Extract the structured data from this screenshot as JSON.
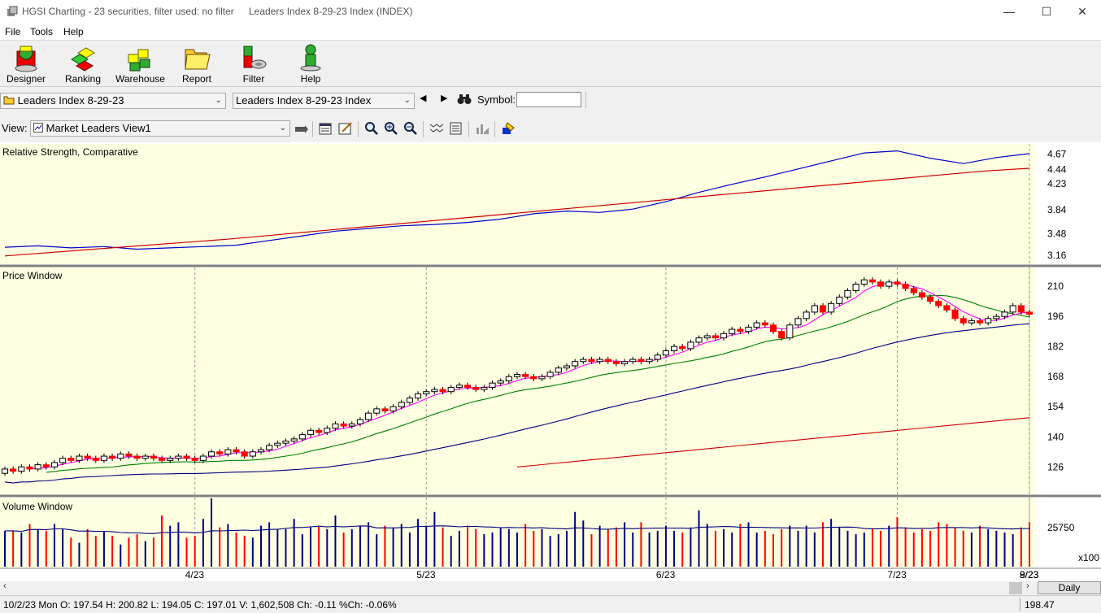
{
  "window": {
    "title": "HGSI Charting - 23 securities, filter used: no filter",
    "document": "Leaders Index 8-29-23 Index (INDEX)",
    "minimize": "—",
    "maximize": "☐",
    "close": "✕"
  },
  "menu": [
    "File",
    "Tools",
    "Help"
  ],
  "toolbar": [
    "Designer",
    "Ranking",
    "Warehouse",
    "Report",
    "Filter",
    "Help"
  ],
  "selectors": {
    "list_value": "Leaders Index 8-29-23",
    "security_value": "Leaders Index 8-29-23 Index",
    "symbol_label": "Symbol:",
    "symbol_value": "",
    "prev": "◀",
    "next": "▶"
  },
  "view": {
    "label": "View:",
    "value": "Market Leaders View1"
  },
  "panels": {
    "rs": {
      "title": "Relative Strength, Comparative",
      "ticks": [
        "4.67",
        "4.44",
        "4.23",
        "3.84",
        "3.48",
        "3.16"
      ]
    },
    "price": {
      "title": "Price Window",
      "ticks": [
        "210",
        "196",
        "182",
        "168",
        "154",
        "140",
        "126"
      ]
    },
    "volume": {
      "title": "Volume Window",
      "ticks": [
        "25750"
      ],
      "multiplier": "x100"
    }
  },
  "x_labels": [
    "4/23",
    "5/23",
    "6/23",
    "7/23",
    "8/23",
    "9/23"
  ],
  "period": "Daily",
  "status": {
    "text": "10/2/23 Mon O: 197.54 H: 200.82 L: 194.05 C: 197.01 V: 1,602,508 Ch: -0.11 %Ch: -0.06%",
    "last": "198.47"
  },
  "colors": {
    "chart_bg": "#ffffe1",
    "up_candle": "#ffffff",
    "down_candle": "#ff0000",
    "rs_line": "#0000cc",
    "rs_ma": "#cc0000",
    "ma_short": "#ff00ff",
    "ma_mid": "#008000",
    "ma_long": "#000080",
    "ma_longest": "#cc0000",
    "vol_up": "#000080",
    "vol_down": "#ff0000"
  },
  "chart_data": {
    "type": "candlestick",
    "series": [
      {
        "name": "Relative Strength, Comparative",
        "values": [
          3.28,
          3.3,
          3.27,
          3.29,
          3.25,
          3.27,
          3.29,
          3.31,
          3.38,
          3.45,
          3.52,
          3.56,
          3.6,
          3.62,
          3.65,
          3.7,
          3.78,
          3.82,
          3.8,
          3.85,
          3.96,
          4.1,
          4.22,
          4.33,
          4.45,
          4.57,
          4.69,
          4.72,
          4.61,
          4.53,
          4.62,
          4.68
        ]
      },
      {
        "name": "RS MA",
        "values": [
          3.15,
          3.2,
          3.25,
          3.3,
          3.35,
          3.4,
          3.46,
          3.52,
          3.58,
          3.64,
          3.7,
          3.76,
          3.82,
          3.88,
          3.94,
          4.0,
          4.06,
          4.12,
          4.18,
          4.24,
          4.3,
          4.36,
          4.42,
          4.46
        ]
      }
    ],
    "candles": [
      {
        "o": 123,
        "c": 125
      },
      {
        "o": 125,
        "c": 124
      },
      {
        "o": 124,
        "c": 126
      },
      {
        "o": 126,
        "c": 125
      },
      {
        "o": 125,
        "c": 127
      },
      {
        "o": 127,
        "c": 126
      },
      {
        "o": 126,
        "c": 128
      },
      {
        "o": 128,
        "c": 130
      },
      {
        "o": 130,
        "c": 129
      },
      {
        "o": 129,
        "c": 131
      },
      {
        "o": 131,
        "c": 130
      },
      {
        "o": 130,
        "c": 129
      },
      {
        "o": 129,
        "c": 131
      },
      {
        "o": 131,
        "c": 130
      },
      {
        "o": 130,
        "c": 132
      },
      {
        "o": 132,
        "c": 131
      },
      {
        "o": 131,
        "c": 130
      },
      {
        "o": 130,
        "c": 131
      },
      {
        "o": 131,
        "c": 130
      },
      {
        "o": 130,
        "c": 129
      },
      {
        "o": 129,
        "c": 130
      },
      {
        "o": 130,
        "c": 131
      },
      {
        "o": 131,
        "c": 130
      },
      {
        "o": 130,
        "c": 129
      },
      {
        "o": 129,
        "c": 131
      },
      {
        "o": 131,
        "c": 133
      },
      {
        "o": 133,
        "c": 132
      },
      {
        "o": 132,
        "c": 134
      },
      {
        "o": 134,
        "c": 133
      },
      {
        "o": 133,
        "c": 131
      },
      {
        "o": 131,
        "c": 133
      },
      {
        "o": 133,
        "c": 134
      },
      {
        "o": 134,
        "c": 136
      },
      {
        "o": 136,
        "c": 137
      },
      {
        "o": 137,
        "c": 138
      },
      {
        "o": 138,
        "c": 139
      },
      {
        "o": 139,
        "c": 141
      },
      {
        "o": 141,
        "c": 143
      },
      {
        "o": 143,
        "c": 142
      },
      {
        "o": 142,
        "c": 144
      },
      {
        "o": 144,
        "c": 146
      },
      {
        "o": 146,
        "c": 145
      },
      {
        "o": 145,
        "c": 146
      },
      {
        "o": 146,
        "c": 148
      },
      {
        "o": 148,
        "c": 151
      },
      {
        "o": 151,
        "c": 153
      },
      {
        "o": 153,
        "c": 152
      },
      {
        "o": 152,
        "c": 154
      },
      {
        "o": 154,
        "c": 156
      },
      {
        "o": 156,
        "c": 158
      },
      {
        "o": 158,
        "c": 160
      },
      {
        "o": 160,
        "c": 161
      },
      {
        "o": 161,
        "c": 162
      },
      {
        "o": 162,
        "c": 161
      },
      {
        "o": 161,
        "c": 163
      },
      {
        "o": 163,
        "c": 164
      },
      {
        "o": 164,
        "c": 163
      },
      {
        "o": 163,
        "c": 162
      },
      {
        "o": 162,
        "c": 163
      },
      {
        "o": 163,
        "c": 165
      },
      {
        "o": 165,
        "c": 166
      },
      {
        "o": 166,
        "c": 168
      },
      {
        "o": 168,
        "c": 169
      },
      {
        "o": 169,
        "c": 168
      },
      {
        "o": 168,
        "c": 167
      },
      {
        "o": 167,
        "c": 168
      },
      {
        "o": 168,
        "c": 170
      },
      {
        "o": 170,
        "c": 172
      },
      {
        "o": 172,
        "c": 173
      },
      {
        "o": 173,
        "c": 175
      },
      {
        "o": 175,
        "c": 176
      },
      {
        "o": 176,
        "c": 175
      },
      {
        "o": 175,
        "c": 176
      },
      {
        "o": 176,
        "c": 175
      },
      {
        "o": 175,
        "c": 174
      },
      {
        "o": 174,
        "c": 175
      },
      {
        "o": 175,
        "c": 176
      },
      {
        "o": 176,
        "c": 175
      },
      {
        "o": 175,
        "c": 176
      },
      {
        "o": 176,
        "c": 178
      },
      {
        "o": 178,
        "c": 180
      },
      {
        "o": 180,
        "c": 182
      },
      {
        "o": 182,
        "c": 181
      },
      {
        "o": 181,
        "c": 184
      },
      {
        "o": 184,
        "c": 186
      },
      {
        "o": 186,
        "c": 187
      },
      {
        "o": 187,
        "c": 186
      },
      {
        "o": 186,
        "c": 188
      },
      {
        "o": 188,
        "c": 190
      },
      {
        "o": 190,
        "c": 189
      },
      {
        "o": 189,
        "c": 191
      },
      {
        "o": 191,
        "c": 193
      },
      {
        "o": 193,
        "c": 192
      },
      {
        "o": 192,
        "c": 189
      },
      {
        "o": 189,
        "c": 186
      },
      {
        "o": 186,
        "c": 192
      },
      {
        "o": 192,
        "c": 195
      },
      {
        "o": 195,
        "c": 198
      },
      {
        "o": 198,
        "c": 201
      },
      {
        "o": 201,
        "c": 198
      },
      {
        "o": 198,
        "c": 202
      },
      {
        "o": 202,
        "c": 205
      },
      {
        "o": 205,
        "c": 208
      },
      {
        "o": 208,
        "c": 211
      },
      {
        "o": 211,
        "c": 213
      },
      {
        "o": 213,
        "c": 212
      },
      {
        "o": 212,
        "c": 210
      },
      {
        "o": 210,
        "c": 212
      },
      {
        "o": 212,
        "c": 211
      },
      {
        "o": 211,
        "c": 209
      },
      {
        "o": 209,
        "c": 207
      },
      {
        "o": 207,
        "c": 205
      },
      {
        "o": 205,
        "c": 203
      },
      {
        "o": 203,
        "c": 201
      },
      {
        "o": 201,
        "c": 199
      },
      {
        "o": 199,
        "c": 195
      },
      {
        "o": 195,
        "c": 193
      },
      {
        "o": 193,
        "c": 194
      },
      {
        "o": 194,
        "c": 193
      },
      {
        "o": 193,
        "c": 195
      },
      {
        "o": 195,
        "c": 196
      },
      {
        "o": 196,
        "c": 198
      },
      {
        "o": 198,
        "c": 201
      },
      {
        "o": 201,
        "c": 198
      },
      {
        "o": 198,
        "c": 197
      }
    ],
    "volume": [
      210,
      210,
      200,
      250,
      220,
      210,
      250,
      220,
      170,
      140,
      220,
      180,
      210,
      180,
      130,
      170,
      190,
      150,
      170,
      300,
      240,
      260,
      170,
      180,
      280,
      400,
      230,
      250,
      200,
      180,
      170,
      240,
      260,
      220,
      220,
      280,
      190,
      230,
      240,
      220,
      300,
      200,
      220,
      240,
      260,
      190,
      240,
      230,
      250,
      200,
      280,
      240,
      320,
      230,
      180,
      210,
      240,
      220,
      190,
      200,
      230,
      220,
      200,
      250,
      210,
      220,
      180,
      190,
      210,
      320,
      270,
      190,
      240,
      220,
      230,
      260,
      200,
      260,
      200,
      210,
      240,
      210,
      200,
      230,
      330,
      250,
      210,
      220,
      200,
      250,
      260,
      200,
      210,
      190,
      220,
      240,
      210,
      240,
      200,
      260,
      280,
      230,
      210,
      190,
      200,
      220,
      210,
      240,
      290,
      230,
      200,
      220,
      210,
      260,
      250,
      230,
      210,
      200,
      240,
      220,
      210,
      200,
      190,
      230,
      220,
      260,
      210,
      200,
      180
    ],
    "y_ranges": {
      "rs": [
        3.05,
        4.8
      ],
      "price": [
        114,
        218
      ],
      "volume": [
        0,
        400
      ]
    }
  }
}
